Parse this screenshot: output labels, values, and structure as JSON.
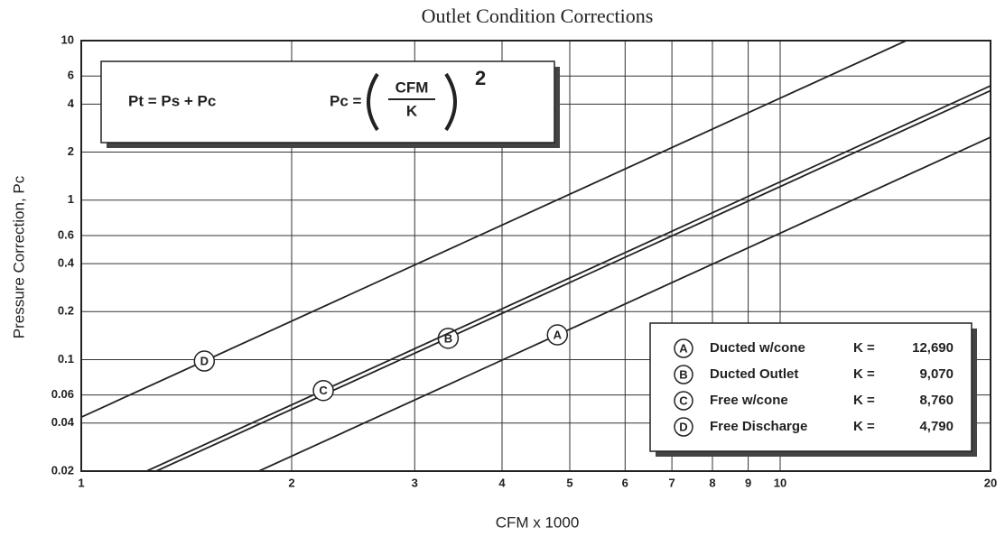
{
  "chart_data": {
    "type": "line",
    "title": "Outlet Condition Corrections",
    "xlabel": "CFM x 1000",
    "ylabel": "Pressure Correction,  Pc",
    "log_x": true,
    "log_y": true,
    "grid": true,
    "xlim": [
      1,
      20
    ],
    "xticks": [
      1,
      2,
      3,
      4,
      5,
      6,
      7,
      8,
      9,
      10,
      20
    ],
    "ylim": [
      0.02,
      10
    ],
    "yticks": [
      0.02,
      0.04,
      0.06,
      0.1,
      0.2,
      0.4,
      0.6,
      1,
      2,
      4,
      6,
      10
    ],
    "legend_position": "lower right",
    "formula": {
      "pt": "Pt = Ps + Pc",
      "pc": "Pc =",
      "numerator": "CFM",
      "denominator": "K",
      "exponent": "2"
    },
    "k_prefix": "K =",
    "series": [
      {
        "letter": "A",
        "name": "Ducted w/cone",
        "k_label": "12,690",
        "color": "#222222",
        "x": [
          1.795,
          20
        ],
        "values": [
          0.02,
          2.48
        ],
        "marker": {
          "x": 4.8,
          "y": 0.143
        }
      },
      {
        "letter": "B",
        "name": "Ducted Outlet",
        "k_label": "9,070",
        "color": "#222222",
        "x": [
          1.28,
          20
        ],
        "values": [
          0.02,
          4.86
        ],
        "marker": {
          "x": 3.35,
          "y": 0.136
        }
      },
      {
        "letter": "C",
        "name": "Free w/cone",
        "k_label": "8,760",
        "color": "#222222",
        "x": [
          1.24,
          20
        ],
        "values": [
          0.02,
          5.21
        ],
        "marker": {
          "x": 2.22,
          "y": 0.064
        }
      },
      {
        "letter": "D",
        "name": "Free Discharge",
        "k_label": "4,790",
        "color": "#222222",
        "x": [
          1,
          15.15
        ],
        "values": [
          0.0436,
          10
        ],
        "marker": {
          "x": 1.5,
          "y": 0.098
        }
      }
    ]
  }
}
